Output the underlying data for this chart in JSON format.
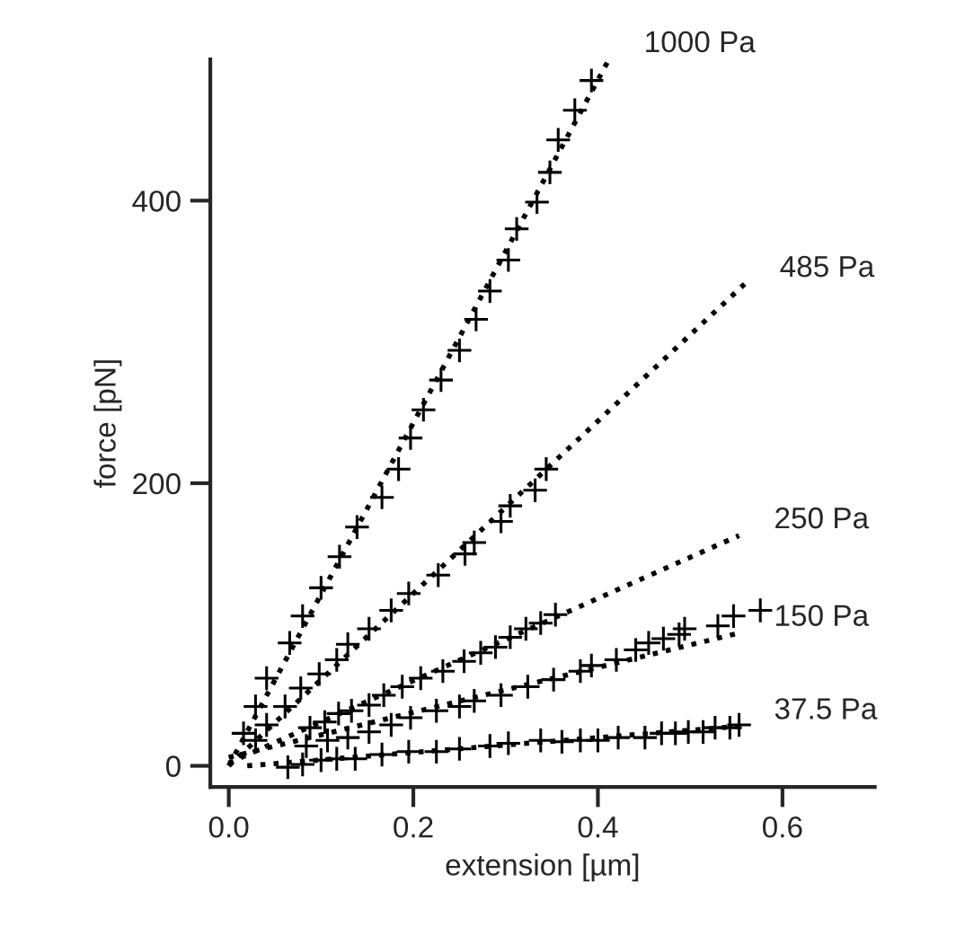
{
  "chart_data": {
    "type": "scatter",
    "xlabel": "extension [µm]",
    "ylabel": "force [pN]",
    "xlim": [
      -0.02,
      0.7
    ],
    "ylim": [
      -15,
      500
    ],
    "xticks": [
      {
        "value": 0,
        "label": "0.0"
      },
      0.2,
      0.4,
      0.6
    ],
    "yticks": [
      0,
      200,
      400
    ],
    "grid": false,
    "legend": false,
    "marker": "cross",
    "series": [
      {
        "color": "#000000",
        "x": [
          0.393,
          0.375,
          0.357,
          0.348,
          0.334,
          0.312,
          0.303,
          0.283,
          0.268,
          0.25,
          0.23,
          0.211,
          0.197,
          0.184,
          0.166,
          0.139,
          0.12,
          0.1,
          0.08,
          0.066,
          0.041,
          0.029,
          0.016
        ],
        "values": [
          485,
          464,
          443,
          420,
          399,
          380,
          358,
          336,
          316,
          294,
          273,
          252,
          232,
          210,
          190,
          169,
          148,
          126,
          106,
          87,
          62,
          42,
          23
        ]
      },
      {
        "type": "line",
        "name": "1000 Pa",
        "color": "#000000",
        "line_style": "dotted",
        "marker": "none",
        "x": [
          0.0,
          0.412
        ],
        "values": [
          0,
          500
        ]
      },
      {
        "color": "#000000",
        "x": [
          0.344,
          0.332,
          0.305,
          0.295,
          0.266,
          0.256,
          0.227,
          0.195,
          0.176,
          0.152,
          0.129,
          0.117,
          0.098,
          0.078,
          0.061,
          0.041,
          0.029
        ],
        "values": [
          210,
          195,
          184,
          173,
          158,
          150,
          135,
          122,
          110,
          97,
          86,
          75,
          65,
          55,
          42,
          29,
          18
        ]
      },
      {
        "type": "line",
        "name": "485 Pa",
        "color": "#000000",
        "line_style": "dotted",
        "marker": "none",
        "x": [
          0.0,
          0.559
        ],
        "values": [
          0,
          341
        ]
      },
      {
        "color": "#000000",
        "x": [
          0.354,
          0.338,
          0.322,
          0.305,
          0.289,
          0.273,
          0.255,
          0.232,
          0.208,
          0.188,
          0.168,
          0.152,
          0.133,
          0.119,
          0.104,
          0.088
        ],
        "values": [
          107,
          101,
          97,
          91,
          84,
          80,
          74,
          67,
          62,
          56,
          50,
          43,
          39,
          37,
          31,
          27
        ]
      },
      {
        "type": "line",
        "name": "250 Pa",
        "color": "#000000",
        "line_style": "dotted",
        "marker": "none",
        "x": [
          0.0,
          0.553
        ],
        "values": [
          2,
          163
        ]
      },
      {
        "color": "#000000",
        "x": [
          0.576,
          0.547,
          0.53,
          0.494,
          0.488,
          0.471,
          0.455,
          0.441,
          0.42,
          0.393,
          0.381,
          0.352,
          0.324,
          0.295,
          0.266,
          0.25,
          0.225,
          0.197,
          0.176,
          0.152,
          0.129,
          0.107,
          0.084
        ],
        "values": [
          110,
          106,
          99,
          97,
          93,
          90,
          87,
          82,
          75,
          71,
          67,
          61,
          56,
          50,
          46,
          42,
          39,
          34,
          29,
          24,
          20,
          18,
          14
        ]
      },
      {
        "type": "line",
        "name": "150 Pa",
        "color": "#000000",
        "line_style": "dotted",
        "marker": "none",
        "x": [
          0.0,
          0.553
        ],
        "values": [
          6,
          94
        ]
      },
      {
        "color": "#000000",
        "x": [
          0.553,
          0.543,
          0.527,
          0.514,
          0.498,
          0.484,
          0.469,
          0.451,
          0.422,
          0.4,
          0.381,
          0.361,
          0.338,
          0.303,
          0.283,
          0.25,
          0.225,
          0.195,
          0.166,
          0.137,
          0.117,
          0.1,
          0.08,
          0.064
        ],
        "values": [
          29,
          27,
          27,
          24,
          24,
          23,
          23,
          20,
          20,
          18,
          18,
          17,
          18,
          16,
          14,
          12,
          10,
          10,
          8,
          5,
          5,
          4,
          1,
          -1
        ]
      },
      {
        "type": "line",
        "name": "37.5 Pa",
        "color": "#000000",
        "line_style": "dotted",
        "marker": "none",
        "x": [
          0.02,
          0.553
        ],
        "values": [
          0,
          28
        ]
      }
    ]
  }
}
